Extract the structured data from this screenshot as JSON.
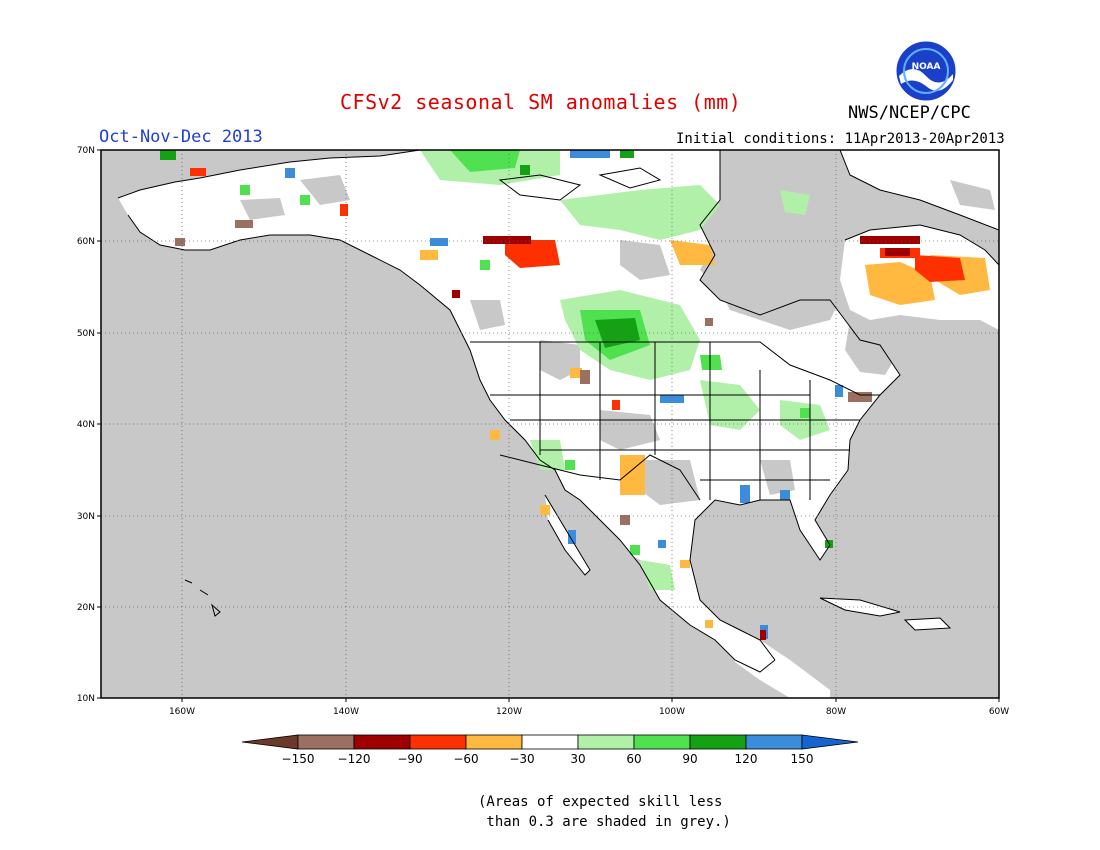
{
  "title": "CFSv2 seasonal SM anomalies (mm)",
  "period": "Oct-Nov-Dec 2013",
  "initial_conditions": "Initial conditions: 11Apr2013-20Apr2013",
  "agency": "NWS/NCEP/CPC",
  "logo_text": "NOAA",
  "map": {
    "lat_labels": [
      "70N",
      "60N",
      "50N",
      "40N",
      "30N",
      "20N",
      "10N"
    ],
    "lon_labels": [
      "160W",
      "140W",
      "120W",
      "100W",
      "80W",
      "60W"
    ],
    "lat_range": [
      10,
      70
    ],
    "lon_range": [
      -170,
      -60
    ],
    "grid": "dotted"
  },
  "legend": {
    "ticks": [
      "-150",
      "-120",
      "-90",
      "-60",
      "-30",
      "30",
      "60",
      "90",
      "120",
      "150"
    ],
    "colors": [
      "#6b3a2a",
      "#9c7060",
      "#9e0000",
      "#ff3000",
      "#ffb840",
      "#ffffff",
      "#b0f0a8",
      "#4fe14f",
      "#14a214",
      "#3c8cdc",
      "#1464d2"
    ]
  },
  "note_line1": "(Areas of expected skill less",
  "note_line2": " than 0.3 are shaded in grey.)"
}
